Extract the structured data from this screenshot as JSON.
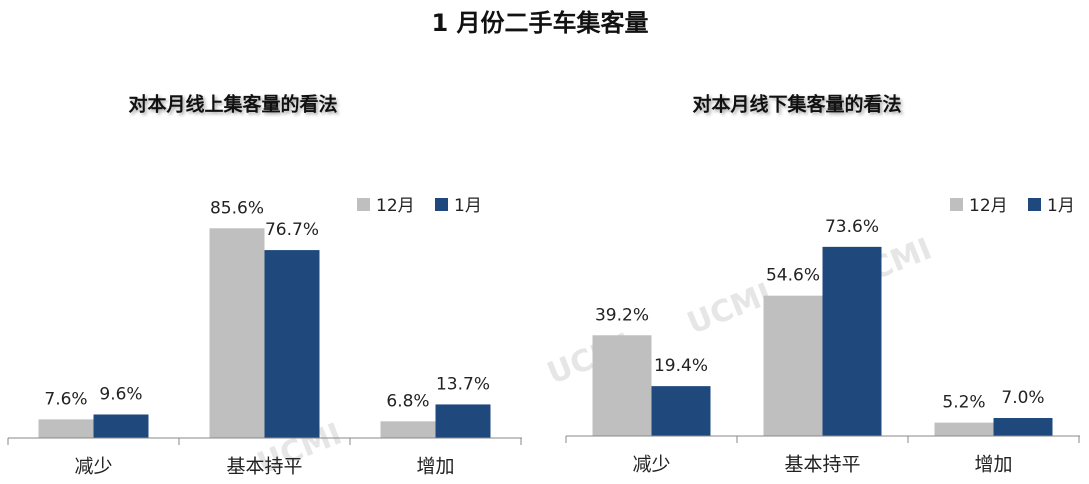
{
  "title": "1 月份二手车集客量",
  "watermark": "UCMI",
  "chart_data": [
    {
      "type": "bar",
      "title": "对本月线上集客量的看法",
      "categories": [
        "减少",
        "基本持平",
        "增加"
      ],
      "series": [
        {
          "name": "12月",
          "color": "#bfbfbf",
          "values": [
            7.6,
            85.6,
            6.8
          ],
          "value_labels": [
            "7.6%",
            "85.6%",
            "6.8%"
          ]
        },
        {
          "name": "1月",
          "color": "#1f497d",
          "values": [
            9.6,
            76.7,
            13.7
          ],
          "value_labels": [
            "9.6%",
            "76.7%",
            "13.7%"
          ]
        }
      ],
      "ylim": [
        0,
        100
      ],
      "legend": "top-right"
    },
    {
      "type": "bar",
      "title": "对本月线下集客量的看法",
      "categories": [
        "减少",
        "基本持平",
        "增加"
      ],
      "series": [
        {
          "name": "12月",
          "color": "#bfbfbf",
          "values": [
            39.2,
            54.6,
            5.2
          ],
          "value_labels": [
            "39.2%",
            "54.6%",
            "5.2%"
          ]
        },
        {
          "name": "1月",
          "color": "#1f497d",
          "values": [
            19.4,
            73.6,
            7.0
          ],
          "value_labels": [
            "19.4%",
            "73.6%",
            "7.0%"
          ]
        }
      ],
      "ylim": [
        0,
        100
      ],
      "legend": "top-right"
    }
  ]
}
